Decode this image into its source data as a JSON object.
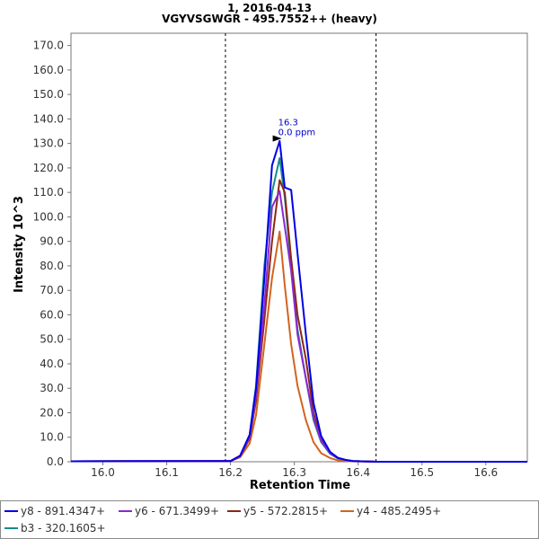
{
  "chart_data": {
    "type": "line",
    "title": "1, 2016-04-13",
    "subtitle": "VGYVSGWGR - 495.7552++ (heavy)",
    "xlabel": "Retention Time",
    "ylabel": "Intensity 10^3",
    "xlim": [
      15.95,
      16.665
    ],
    "ylim": [
      0,
      175
    ],
    "x_ticks": [
      "16.0",
      "16.1",
      "16.2",
      "16.3",
      "16.4",
      "16.5",
      "16.6"
    ],
    "y_ticks": [
      "0.0",
      "10.0",
      "20.0",
      "30.0",
      "40.0",
      "50.0",
      "60.0",
      "70.0",
      "80.0",
      "90.0",
      "100.0",
      "110.0",
      "120.0",
      "130.0",
      "140.0",
      "150.0",
      "160.0",
      "170.0"
    ],
    "integration_bounds": [
      16.192,
      16.428
    ],
    "peak_annotation": {
      "x": 16.283,
      "y": 131.5,
      "label_rt": "16.3",
      "label_ppm": "0.0 ppm"
    },
    "x": [
      15.95,
      16.2,
      16.215,
      16.23,
      16.24,
      16.253,
      16.265,
      16.277,
      16.285,
      16.295,
      16.305,
      16.318,
      16.33,
      16.342,
      16.356,
      16.368,
      16.38,
      16.392,
      16.405,
      16.418,
      16.43,
      16.445,
      16.46,
      16.665
    ],
    "series": [
      {
        "name": "y8 - 891.4347+",
        "color": "#0000e6",
        "values": [
          0.2,
          0.3,
          2.5,
          11.0,
          30.0,
          75.0,
          121.0,
          131.0,
          112.0,
          111.0,
          85.0,
          52.0,
          24.0,
          10.5,
          4.0,
          1.6,
          0.8,
          0.3,
          0.2,
          0.1,
          0.0,
          0.0,
          0.0,
          0.0
        ]
      },
      {
        "name": "y6 - 671.3499+",
        "color": "#8c28d2",
        "values": [
          0.2,
          0.3,
          2.3,
          10.0,
          27.0,
          64.0,
          104.0,
          110.5,
          96.0,
          78.0,
          52.0,
          34.0,
          18.0,
          8.5,
          3.5,
          1.5,
          0.7,
          0.3,
          0.2,
          0.1,
          0.0,
          0.0,
          0.0,
          0.0
        ]
      },
      {
        "name": "y5 - 572.2815+",
        "color": "#8c2814",
        "values": [
          0.2,
          0.3,
          2.2,
          9.5,
          25.0,
          58.0,
          90.0,
          115.0,
          110.0,
          83.0,
          60.0,
          42.0,
          20.0,
          9.0,
          3.8,
          1.6,
          0.7,
          0.3,
          0.2,
          0.1,
          0.0,
          0.0,
          0.0,
          0.0
        ]
      },
      {
        "name": "y4 - 485.2495+",
        "color": "#d2641e",
        "values": [
          0.2,
          0.3,
          1.8,
          7.5,
          19.0,
          48.0,
          75.0,
          94.0,
          72.0,
          48.0,
          31.0,
          17.0,
          8.0,
          3.5,
          1.5,
          0.6,
          0.3,
          0.2,
          0.1,
          0.1,
          0.0,
          0.0,
          0.0,
          0.0
        ]
      },
      {
        "name": "b3 - 320.1605+",
        "color": "#148c8c",
        "values": [
          0.2,
          0.3,
          2.4,
          11.0,
          31.0,
          80.0,
          110.0,
          124.0,
          108.0,
          80.0,
          54.0,
          34.0,
          17.0,
          8.0,
          3.2,
          1.4,
          0.6,
          0.3,
          0.2,
          0.1,
          0.0,
          0.0,
          0.0,
          0.0
        ]
      }
    ],
    "legend": "bottom",
    "grid": false
  }
}
